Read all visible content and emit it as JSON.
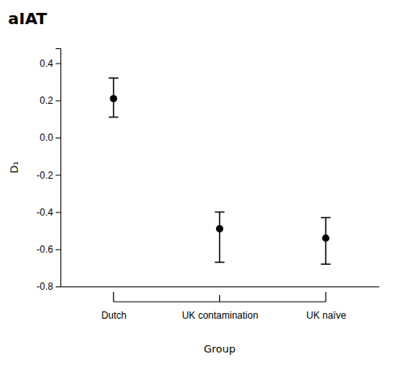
{
  "chart_data": {
    "type": "errorbar",
    "title": "aIAT",
    "xlabel": "Group",
    "ylabel": "D₁",
    "categories": [
      "Dutch",
      "UK contamination",
      "UK naïve"
    ],
    "values": [
      0.21,
      -0.49,
      -0.54
    ],
    "ci_lower": [
      0.11,
      -0.67,
      -0.68
    ],
    "ci_upper": [
      0.32,
      -0.4,
      -0.43
    ],
    "ylim": [
      -0.8,
      0.48
    ],
    "yticks": [
      -0.8,
      -0.6,
      -0.4,
      -0.2,
      {
        "value": 0.0,
        "label": "0.0"
      },
      0.2,
      0.4
    ],
    "color": "black",
    "marker": "circle",
    "grid": false
  }
}
